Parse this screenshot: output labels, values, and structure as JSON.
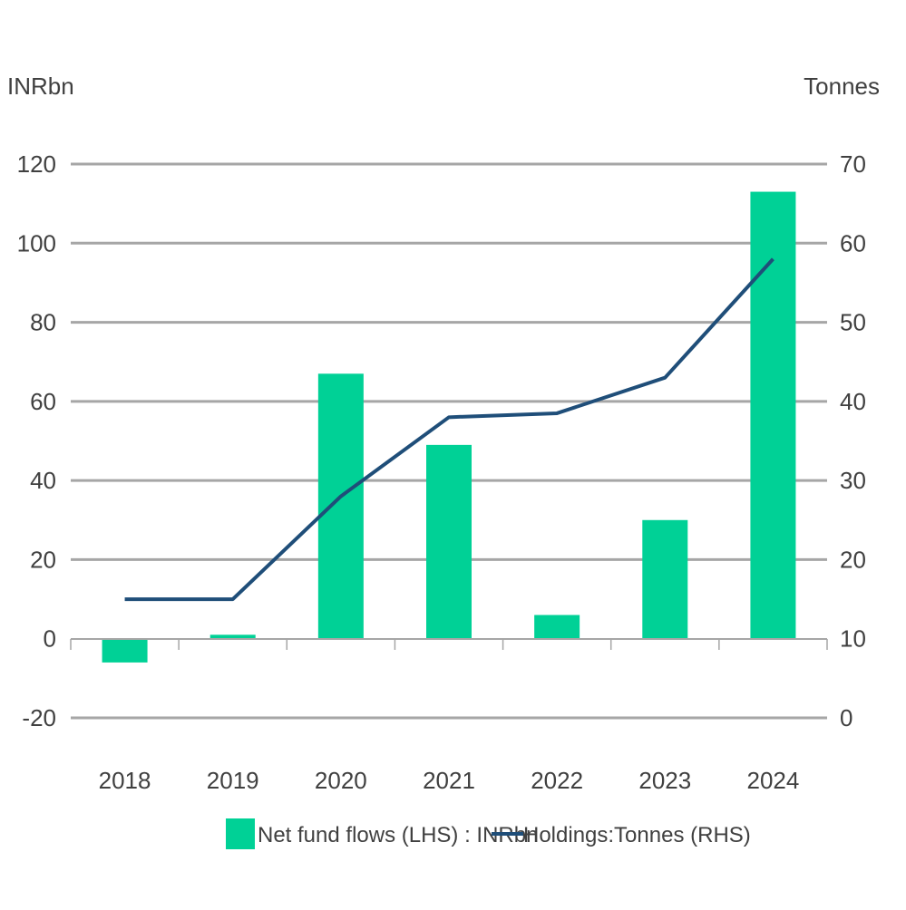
{
  "chart_data": {
    "type": "bar",
    "categories": [
      "2018",
      "2019",
      "2020",
      "2021",
      "2022",
      "2023",
      "2024"
    ],
    "series": [
      {
        "name": "Net fund flows (LHS) : INRbn",
        "type": "bar",
        "axis": "left",
        "values": [
          -6,
          1,
          67,
          49,
          6,
          30,
          113
        ]
      },
      {
        "name": "Holdings:Tonnes  (RHS)",
        "type": "line",
        "axis": "right",
        "values": [
          15,
          15,
          28,
          38,
          38.5,
          43,
          58
        ]
      }
    ],
    "left_axis": {
      "unit_label": "INRbn",
      "ylim": [
        -20,
        120
      ],
      "ticks": [
        "120",
        "100",
        "80",
        "60",
        "40",
        "20",
        "0",
        "-20"
      ]
    },
    "right_axis": {
      "unit_label": "Tonnes",
      "ylim": [
        0,
        70
      ],
      "ticks": [
        "70",
        "60",
        "50",
        "40",
        "30",
        "20",
        "10",
        "0"
      ]
    },
    "grid": true,
    "legend_position": "bottom",
    "colors": {
      "bar": "#00d196",
      "line": "#1f4e79",
      "grid": "#a6a6a6",
      "text": "#404040"
    }
  }
}
